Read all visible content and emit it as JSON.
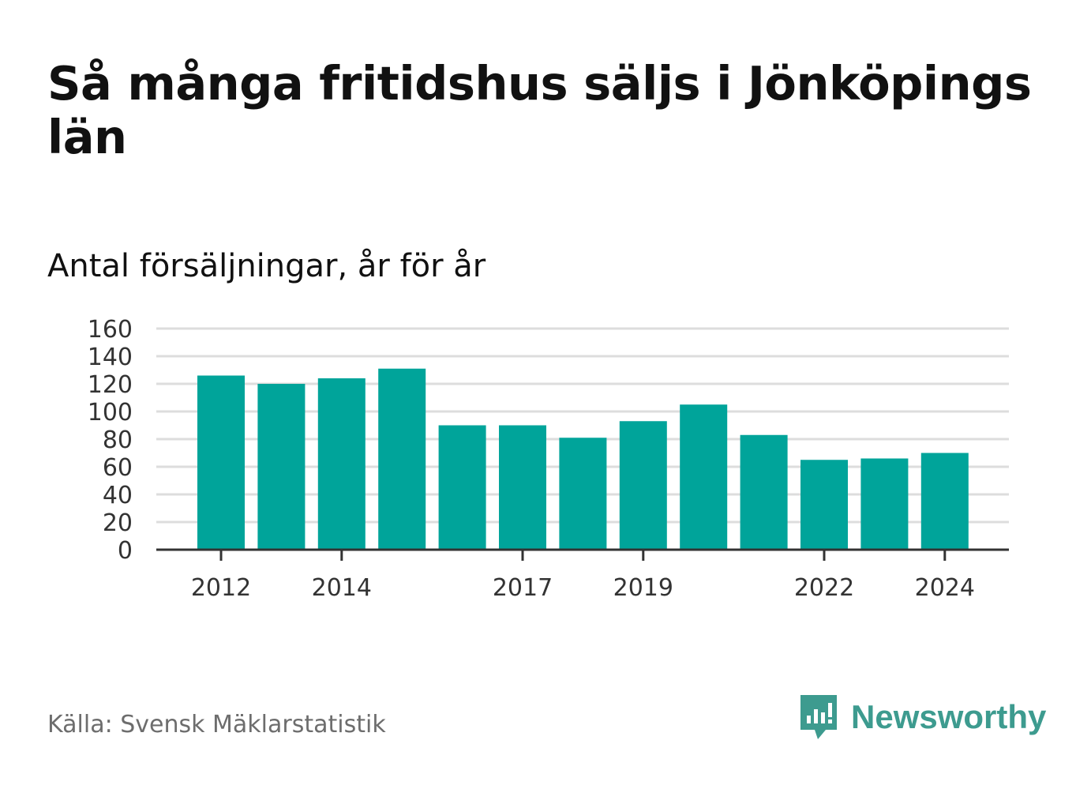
{
  "title": "Så många fritidshus säljs i Jönköpings län",
  "subtitle": "Antal försäljningar, år för år",
  "source": "Källa: Svensk Mäklarstatistik",
  "brand": {
    "name": "Newsworthy",
    "icon": "newsworthy-logo-icon"
  },
  "colors": {
    "bar": "#00a49a",
    "grid": "#dddddd",
    "axis": "#333333",
    "brand": "#3d9b8f"
  },
  "chart_data": {
    "type": "bar",
    "categories": [
      "2012",
      "2013",
      "2014",
      "2015",
      "2016",
      "2017",
      "2018",
      "2019",
      "2020",
      "2021",
      "2022",
      "2023",
      "2024"
    ],
    "values": [
      126,
      120,
      124,
      131,
      90,
      90,
      81,
      93,
      105,
      83,
      65,
      66,
      70
    ],
    "x_tick_labels": [
      "2012",
      "2014",
      "2017",
      "2019",
      "2022",
      "2024"
    ],
    "y_ticks": [
      0,
      20,
      40,
      60,
      80,
      100,
      120,
      140,
      160
    ],
    "ylim": [
      0,
      160
    ],
    "title": "Så många fritidshus säljs i Jönköpings län",
    "subtitle": "Antal försäljningar, år för år",
    "xlabel": "",
    "ylabel": "",
    "grid": true,
    "legend": false
  }
}
